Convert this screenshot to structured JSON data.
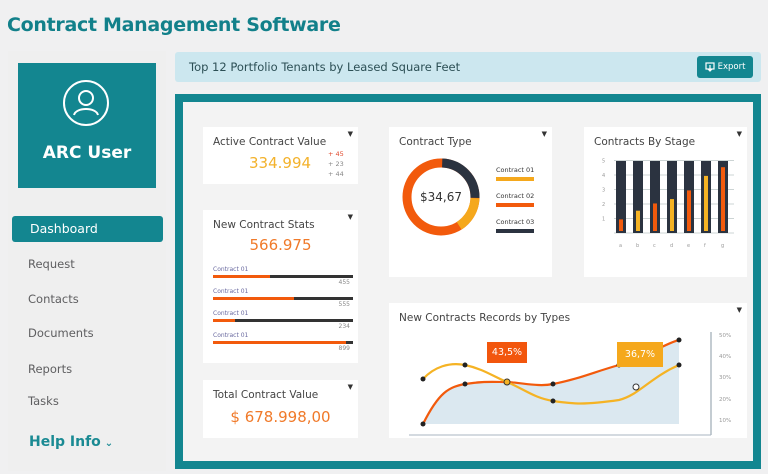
{
  "app": {
    "title": "Contract Management Software"
  },
  "sidebar": {
    "user_name": "ARC User",
    "items": [
      {
        "label": "Dashboard",
        "active": true
      },
      {
        "label": "Request"
      },
      {
        "label": "Contacts"
      },
      {
        "label": "Documents"
      },
      {
        "label": "Reports"
      },
      {
        "label": "Tasks"
      }
    ],
    "help": {
      "label": "Help Info",
      "icon": "chevron-down-icon"
    }
  },
  "header": {
    "title": "Top 12 Portfolio Tenants by Leased Square Feet",
    "export_label": "Export"
  },
  "cards": {
    "active_contract_value": {
      "title": "Active Contract Value",
      "value": "334.994",
      "deltas": [
        "+ 45",
        "+ 23",
        "+ 44"
      ]
    },
    "new_contract_stats": {
      "title": "New Contract Stats",
      "value": "566.975",
      "bars": [
        {
          "label": "Contract 01",
          "value": "455",
          "pct": 41
        },
        {
          "label": "Contract 01",
          "value": "555",
          "pct": 58
        },
        {
          "label": "Contract 01",
          "value": "234",
          "pct": 16
        },
        {
          "label": "Contract 01",
          "value": "899",
          "pct": 95
        }
      ]
    },
    "total_contract_value": {
      "title": "Total Contract Value",
      "value": "$ 678.998,00"
    },
    "contract_type": {
      "title": "Contract Type",
      "center": "$34,67",
      "legend": [
        {
          "label": "Contract 01",
          "color": "#f5a81c"
        },
        {
          "label": "Contract 02",
          "color": "#f25a0c"
        },
        {
          "label": "Contract 03",
          "color": "#2b3340"
        }
      ]
    },
    "contracts_by_stage": {
      "title": "Contracts By Stage",
      "y_ticks": [
        "5",
        "4",
        "3",
        "2",
        "1"
      ],
      "categories": [
        "a",
        "b",
        "c",
        "d",
        "e",
        "f",
        "g"
      ],
      "values": [
        0.8,
        1.4,
        1.9,
        2.2,
        2.8,
        3.8,
        4.4
      ]
    },
    "records_by_types": {
      "title": "New Contracts Records by Types",
      "y_ticks": [
        "50%",
        "40%",
        "30%",
        "20%",
        "10%"
      ],
      "callouts": [
        {
          "label": "43,5%"
        },
        {
          "label": "36,7%"
        }
      ]
    }
  },
  "chart_data": [
    {
      "type": "bar",
      "title": "Contracts By Stage",
      "categories": [
        "a",
        "b",
        "c",
        "d",
        "e",
        "f",
        "g"
      ],
      "values": [
        0.8,
        1.4,
        1.9,
        2.2,
        2.8,
        3.8,
        4.4
      ],
      "ylim": [
        0,
        5
      ]
    },
    {
      "type": "pie",
      "title": "Contract Type",
      "categories": [
        "Contract 01",
        "Contract 02",
        "Contract 03"
      ],
      "values": [
        15,
        60,
        25
      ]
    },
    {
      "type": "line",
      "title": "New Contracts Records by Types",
      "x": [
        1,
        2,
        3,
        4,
        5,
        6,
        7
      ],
      "series": [
        {
          "name": "orange",
          "values": [
            10,
            31,
            33,
            31,
            38,
            47,
            50
          ]
        },
        {
          "name": "yellow",
          "values": [
            32,
            42,
            33,
            22,
            21,
            29,
            39
          ]
        }
      ],
      "ylim": [
        0,
        55
      ],
      "y_ticks": [
        "10%",
        "20%",
        "30%",
        "40%",
        "50%"
      ]
    }
  ]
}
